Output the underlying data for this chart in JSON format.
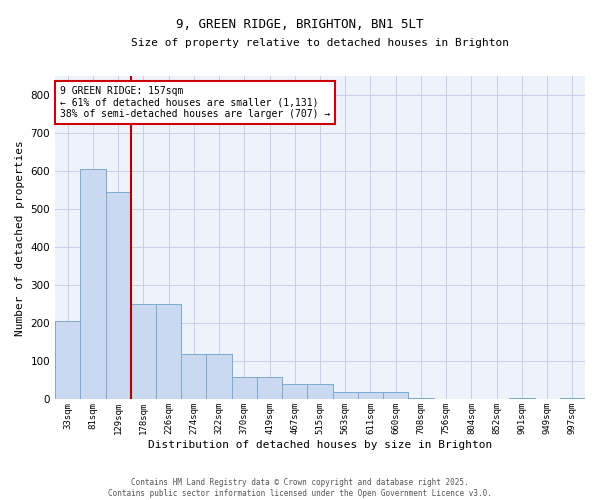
{
  "title": "9, GREEN RIDGE, BRIGHTON, BN1 5LT",
  "subtitle": "Size of property relative to detached houses in Brighton",
  "xlabel": "Distribution of detached houses by size in Brighton",
  "ylabel": "Number of detached properties",
  "bar_color": "#cad9ef",
  "bar_edge_color": "#7aabcf",
  "background_color": "#eef2fb",
  "grid_color": "#c5cfe8",
  "annotation_box_color": "#cc0000",
  "vline_color": "#aa0000",
  "categories": [
    "33sqm",
    "81sqm",
    "129sqm",
    "178sqm",
    "226sqm",
    "274sqm",
    "322sqm",
    "370sqm",
    "419sqm",
    "467sqm",
    "515sqm",
    "563sqm",
    "611sqm",
    "660sqm",
    "708sqm",
    "756sqm",
    "804sqm",
    "852sqm",
    "901sqm",
    "949sqm",
    "997sqm"
  ],
  "values": [
    205,
    605,
    545,
    250,
    250,
    120,
    120,
    60,
    60,
    40,
    40,
    20,
    20,
    20,
    5,
    2,
    2,
    2,
    5,
    2,
    5
  ],
  "ylim": [
    0,
    850
  ],
  "yticks": [
    0,
    100,
    200,
    300,
    400,
    500,
    600,
    700,
    800
  ],
  "annotation_line1": "9 GREEN RIDGE: 157sqm",
  "annotation_line2": "← 61% of detached houses are smaller (1,131)",
  "annotation_line3": "38% of semi-detached houses are larger (707) →",
  "vline_x": 2.5,
  "footer_line1": "Contains HM Land Registry data © Crown copyright and database right 2025.",
  "footer_line2": "Contains public sector information licensed under the Open Government Licence v3.0."
}
